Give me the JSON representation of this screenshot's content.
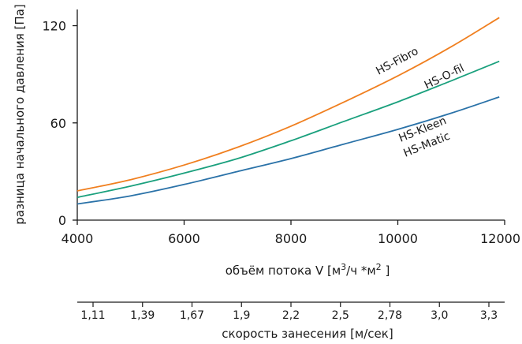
{
  "chart_data": {
    "type": "line",
    "ylabel": "разница начального давления  [Па]",
    "xlabel": {
      "main": "объём потока V [м",
      "sup1": "3",
      "mid": "/ч *м",
      "sup2": "2",
      "end": " ]"
    },
    "secondary_xlabel": "скорость занесения  [м/сек]",
    "xlim": [
      4000,
      12000
    ],
    "ylim": [
      0,
      130
    ],
    "xticks": [
      4000,
      6000,
      8000,
      10000,
      12000
    ],
    "yticks": [
      0,
      60,
      120
    ],
    "secondary_xticks": [
      "1,11",
      "1,39",
      "1,67",
      "1,9",
      "2,2",
      "2,5",
      "2,78",
      "3,0",
      "3,3"
    ],
    "grid": false,
    "series": [
      {
        "name": "HS-Fibro",
        "color": "#f07f1f",
        "x": [
          4000,
          5000,
          6000,
          7000,
          8000,
          9000,
          10000,
          11000,
          11900
        ],
        "y": [
          18,
          25,
          34,
          45,
          58,
          73,
          89,
          107,
          125
        ]
      },
      {
        "name": "HS-O-fil",
        "color": "#1aa07d",
        "x": [
          4000,
          5000,
          6000,
          7000,
          8000,
          9000,
          10000,
          11000,
          11900
        ],
        "y": [
          14,
          21,
          29,
          38,
          49,
          61,
          73,
          86,
          98
        ]
      },
      {
        "name": "HS-Kleen\nHS-Matic",
        "color": "#2a72a8",
        "x": [
          4000,
          5000,
          6000,
          7000,
          8000,
          9000,
          10000,
          11000,
          11900
        ],
        "y": [
          10,
          15,
          22,
          30,
          38,
          47,
          56,
          66,
          76
        ]
      }
    ],
    "series_labels": [
      "HS-Fibro",
      "HS-O-fil",
      "HS-Kleen",
      "HS-Matic"
    ]
  }
}
